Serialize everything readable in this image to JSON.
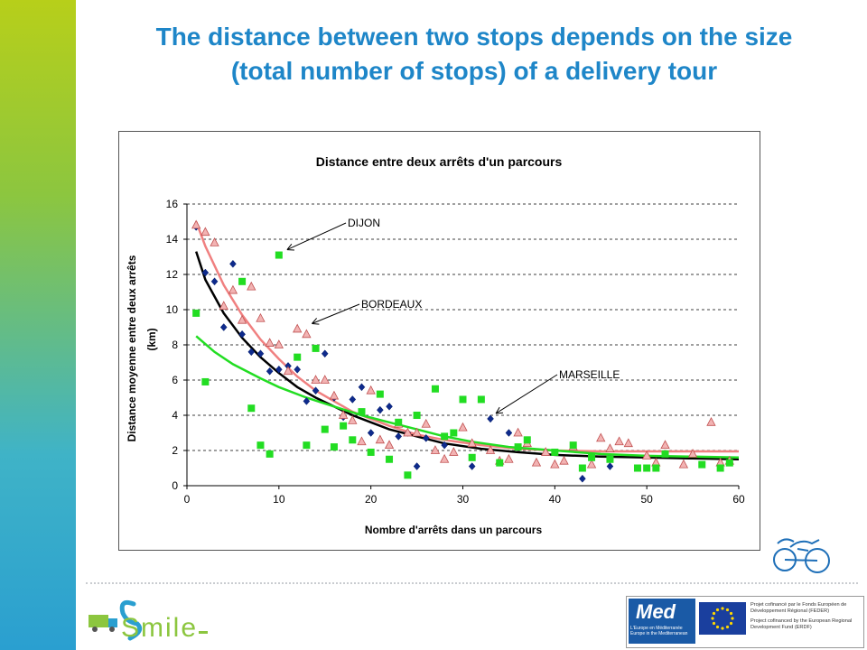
{
  "slide": {
    "title_line1": "The distance between two stops depends on the size",
    "title_line2": "(total number of stops) of a delivery tour"
  },
  "colors": {
    "title": "#1e86c8",
    "dijon": "#0e2a8c",
    "bordeaux": "#e88a8a",
    "marseille": "#22dd22",
    "fit_dijon": "#000000",
    "fit_bordeaux": "#f08080",
    "fit_marseille": "#22dd22"
  },
  "chart_data": {
    "type": "scatter",
    "title": "Distance entre deux arrêts d'un parcours",
    "xlabel": "Nombre d'arrêts dans un parcours",
    "ylabel_line1": "Distance moyenne entre deux arrêts",
    "ylabel_line2": "(km)",
    "xlim": [
      0,
      60
    ],
    "ylim": [
      0,
      16
    ],
    "xticks": [
      0,
      10,
      20,
      30,
      40,
      50,
      60
    ],
    "yticks": [
      0,
      2,
      4,
      6,
      8,
      10,
      12,
      14,
      16
    ],
    "grid": "horizontal dashed",
    "series": [
      {
        "name": "DIJON",
        "marker": "diamond",
        "color": "#0e2a8c",
        "points": [
          [
            1,
            14.7
          ],
          [
            2,
            12.1
          ],
          [
            3,
            11.6
          ],
          [
            4,
            9.0
          ],
          [
            5,
            12.6
          ],
          [
            6,
            8.6
          ],
          [
            7,
            7.6
          ],
          [
            8,
            7.5
          ],
          [
            9,
            6.5
          ],
          [
            10,
            6.6
          ],
          [
            11,
            6.8
          ],
          [
            12,
            6.6
          ],
          [
            13,
            4.8
          ],
          [
            14,
            5.4
          ],
          [
            15,
            7.5
          ],
          [
            16,
            5.0
          ],
          [
            17,
            3.9
          ],
          [
            18,
            4.9
          ],
          [
            19,
            5.6
          ],
          [
            20,
            3.0
          ],
          [
            21,
            4.3
          ],
          [
            22,
            4.5
          ],
          [
            23,
            2.8
          ],
          [
            24,
            3.0
          ],
          [
            25,
            1.1
          ],
          [
            26,
            2.7
          ],
          [
            28,
            2.3
          ],
          [
            31,
            1.1
          ],
          [
            33,
            3.8
          ],
          [
            35,
            3.0
          ],
          [
            43,
            0.4
          ],
          [
            46,
            1.1
          ]
        ]
      },
      {
        "name": "BORDEAUX",
        "marker": "triangle",
        "color": "#e88a8a",
        "points": [
          [
            1,
            14.8
          ],
          [
            2,
            14.4
          ],
          [
            3,
            13.8
          ],
          [
            4,
            10.2
          ],
          [
            5,
            11.1
          ],
          [
            6,
            9.4
          ],
          [
            7,
            11.3
          ],
          [
            8,
            9.5
          ],
          [
            9,
            8.1
          ],
          [
            10,
            8.0
          ],
          [
            11,
            6.5
          ],
          [
            12,
            8.9
          ],
          [
            13,
            8.6
          ],
          [
            14,
            6.0
          ],
          [
            15,
            6.0
          ],
          [
            16,
            5.1
          ],
          [
            17,
            4.0
          ],
          [
            18,
            3.7
          ],
          [
            19,
            2.5
          ],
          [
            20,
            5.4
          ],
          [
            21,
            2.6
          ],
          [
            22,
            2.3
          ],
          [
            23,
            3.5
          ],
          [
            24,
            3.0
          ],
          [
            25,
            3.0
          ],
          [
            26,
            3.5
          ],
          [
            27,
            2.0
          ],
          [
            28,
            1.5
          ],
          [
            29,
            1.9
          ],
          [
            30,
            3.3
          ],
          [
            31,
            2.4
          ],
          [
            33,
            2.0
          ],
          [
            34,
            1.4
          ],
          [
            35,
            1.5
          ],
          [
            36,
            3.0
          ],
          [
            37,
            2.4
          ],
          [
            38,
            1.3
          ],
          [
            39,
            1.9
          ],
          [
            40,
            1.2
          ],
          [
            41,
            1.4
          ],
          [
            42,
            2.2
          ],
          [
            44,
            1.2
          ],
          [
            45,
            2.7
          ],
          [
            46,
            2.1
          ],
          [
            47,
            2.5
          ],
          [
            48,
            2.4
          ],
          [
            50,
            1.7
          ],
          [
            51,
            1.3
          ],
          [
            52,
            2.3
          ],
          [
            54,
            1.2
          ],
          [
            55,
            1.8
          ],
          [
            57,
            3.6
          ],
          [
            58,
            1.3
          ],
          [
            59,
            1.4
          ]
        ]
      },
      {
        "name": "MARSEILLE",
        "marker": "square",
        "color": "#22dd22",
        "points": [
          [
            1,
            9.8
          ],
          [
            2,
            5.9
          ],
          [
            6,
            11.6
          ],
          [
            7,
            4.4
          ],
          [
            8,
            2.3
          ],
          [
            9,
            1.8
          ],
          [
            10,
            13.1
          ],
          [
            12,
            7.3
          ],
          [
            13,
            2.3
          ],
          [
            14,
            7.8
          ],
          [
            15,
            3.2
          ],
          [
            16,
            2.2
          ],
          [
            17,
            3.4
          ],
          [
            18,
            2.6
          ],
          [
            19,
            4.2
          ],
          [
            20,
            1.9
          ],
          [
            21,
            5.2
          ],
          [
            22,
            1.5
          ],
          [
            23,
            3.6
          ],
          [
            24,
            0.6
          ],
          [
            25,
            4.0
          ],
          [
            27,
            5.5
          ],
          [
            28,
            2.8
          ],
          [
            29,
            3.0
          ],
          [
            30,
            4.9
          ],
          [
            31,
            1.6
          ],
          [
            32,
            4.9
          ],
          [
            34,
            1.3
          ],
          [
            36,
            2.2
          ],
          [
            37,
            2.6
          ],
          [
            40,
            1.9
          ],
          [
            42,
            2.3
          ],
          [
            43,
            1.0
          ],
          [
            44,
            1.6
          ],
          [
            46,
            1.5
          ],
          [
            49,
            1.0
          ],
          [
            50,
            1.0
          ],
          [
            51,
            1.0
          ],
          [
            52,
            1.8
          ],
          [
            56,
            1.2
          ],
          [
            58,
            1.0
          ],
          [
            59,
            1.3
          ]
        ]
      }
    ],
    "trendlines": [
      {
        "series": "DIJON",
        "color": "#000000",
        "points": [
          [
            1,
            13.3
          ],
          [
            2,
            11.7
          ],
          [
            4,
            9.8
          ],
          [
            6,
            8.4
          ],
          [
            8,
            7.3
          ],
          [
            10,
            6.4
          ],
          [
            12,
            5.6
          ],
          [
            14,
            5.0
          ],
          [
            16,
            4.5
          ],
          [
            18,
            4.0
          ],
          [
            20,
            3.6
          ],
          [
            22,
            3.2
          ],
          [
            25,
            2.8
          ],
          [
            28,
            2.4
          ],
          [
            32,
            2.1
          ],
          [
            36,
            1.9
          ],
          [
            40,
            1.75
          ],
          [
            45,
            1.65
          ],
          [
            50,
            1.6
          ],
          [
            55,
            1.55
          ],
          [
            60,
            1.5
          ]
        ]
      },
      {
        "series": "BORDEAUX",
        "color": "#f08080",
        "points": [
          [
            1,
            15.0
          ],
          [
            2,
            13.6
          ],
          [
            4,
            11.4
          ],
          [
            6,
            9.7
          ],
          [
            8,
            8.3
          ],
          [
            10,
            7.2
          ],
          [
            12,
            6.2
          ],
          [
            14,
            5.4
          ],
          [
            16,
            4.8
          ],
          [
            18,
            4.2
          ],
          [
            20,
            3.8
          ],
          [
            22,
            3.4
          ],
          [
            25,
            2.9
          ],
          [
            28,
            2.6
          ],
          [
            32,
            2.3
          ],
          [
            36,
            2.1
          ],
          [
            40,
            2.0
          ],
          [
            45,
            1.95
          ],
          [
            50,
            1.95
          ],
          [
            55,
            1.95
          ],
          [
            60,
            1.95
          ]
        ]
      },
      {
        "series": "MARSEILLE",
        "color": "#22dd22",
        "points": [
          [
            1,
            8.5
          ],
          [
            3,
            7.6
          ],
          [
            5,
            6.9
          ],
          [
            8,
            6.1
          ],
          [
            10,
            5.6
          ],
          [
            13,
            5.0
          ],
          [
            16,
            4.5
          ],
          [
            19,
            4.0
          ],
          [
            22,
            3.6
          ],
          [
            25,
            3.2
          ],
          [
            28,
            2.8
          ],
          [
            31,
            2.5
          ],
          [
            35,
            2.2
          ],
          [
            40,
            2.0
          ],
          [
            45,
            1.8
          ],
          [
            50,
            1.7
          ],
          [
            55,
            1.65
          ],
          [
            60,
            1.6
          ]
        ]
      }
    ],
    "annotations": [
      {
        "text": "DIJON",
        "tip": [
          10.5,
          13.2
        ]
      },
      {
        "text": "BORDEAUX",
        "tip": [
          13.2,
          9.0
        ]
      },
      {
        "text": "MARSEILLE",
        "tip": [
          33.2,
          3.9
        ]
      }
    ]
  },
  "footer": {
    "logo_text": "Smile",
    "med_text": "Med",
    "med_sub_fr": "L'Europe en Méditerranée",
    "med_sub_en": "Europe in the Mediterranean",
    "eu_text_fr": "Projet cofinancé par le Fonds Européen de Développement Régional (FEDER)",
    "eu_text_en": "Project cofinanced by the European Regional Development Fund (ERDF)"
  }
}
